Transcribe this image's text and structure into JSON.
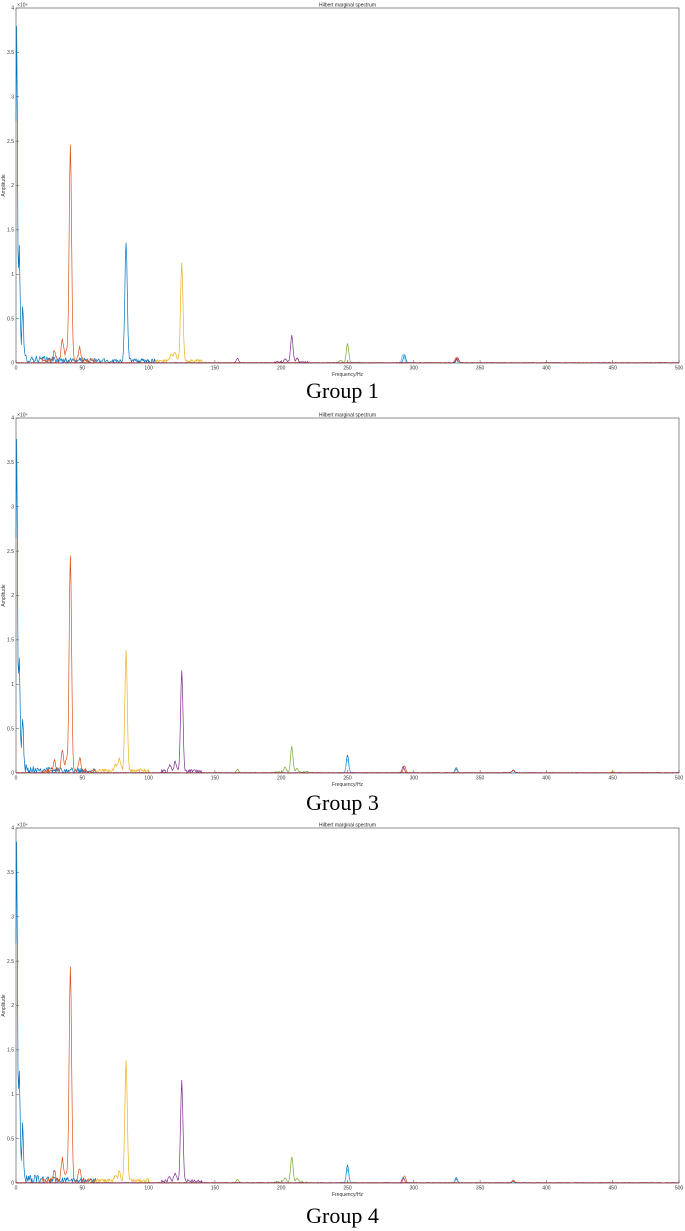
{
  "chart_data": [
    {
      "type": "line",
      "title": "Hilbert marginal spectrum",
      "xlabel": "Frequency/Hz",
      "ylabel": "Amplitude",
      "y_exponent_label": "×10⁴",
      "caption": "Group 1",
      "xlim": [
        0,
        500
      ],
      "ylim": [
        0,
        4
      ],
      "x_ticks": [
        "0",
        "50",
        "100",
        "150",
        "200",
        "250",
        "300",
        "350",
        "400",
        "450",
        "500"
      ],
      "y_ticks": [
        "0",
        "0.5",
        "1",
        "1.5",
        "2",
        "2.5",
        "3",
        "3.5",
        "4"
      ],
      "series": [
        {
          "color": "#0072BD",
          "peaks": [
            [
              0.5,
              3.75
            ],
            [
              2.5,
              1.2
            ],
            [
              5,
              0.6
            ],
            [
              83,
              1.35
            ],
            [
              293,
              0.09
            ],
            [
              332,
              0.04
            ]
          ],
          "floor": [
            0,
            105,
            0.12
          ]
        },
        {
          "color": "#D95319",
          "peaks": [
            [
              41,
              2.43
            ],
            [
              35,
              0.25
            ],
            [
              29,
              0.12
            ],
            [
              48,
              0.15
            ],
            [
              38,
              0.1
            ],
            [
              332,
              0.06
            ]
          ],
          "floor": [
            20,
            60,
            0.05
          ]
        },
        {
          "color": "#EDB120",
          "peaks": [
            [
              125,
              1.12
            ],
            [
              120,
              0.12
            ],
            [
              117,
              0.08
            ],
            [
              212,
              0.05
            ]
          ],
          "floor": [
            105,
            140,
            0.04
          ]
        },
        {
          "color": "#7E2F8E",
          "peaks": [
            [
              208,
              0.3
            ],
            [
              167,
              0.05
            ],
            [
              203,
              0.04
            ],
            [
              212,
              0.04
            ]
          ],
          "floor": [
            195,
            220,
            0.02
          ]
        },
        {
          "color": "#77AC30",
          "peaks": [
            [
              250,
              0.21
            ],
            [
              245,
              0.03
            ]
          ],
          "floor": [
            240,
            260,
            0.01
          ]
        },
        {
          "color": "#4DBEEE",
          "peaks": [
            [
              292,
              0.1
            ]
          ],
          "floor": [
            285,
            300,
            0.01
          ]
        },
        {
          "color": "#A2142F",
          "peaks": [
            [
              333,
              0.06
            ]
          ],
          "floor": [
            328,
            338,
            0.005
          ]
        }
      ]
    },
    {
      "type": "line",
      "title": "Hilbert marginal spectrum",
      "xlabel": "Frequency/Hz",
      "ylabel": "Amplitude",
      "y_exponent_label": "×10⁴",
      "caption": "Group 3",
      "xlim": [
        0,
        500
      ],
      "ylim": [
        0,
        4
      ],
      "x_ticks": [
        "0",
        "50",
        "100",
        "150",
        "200",
        "250",
        "300",
        "350",
        "400",
        "450",
        "500"
      ],
      "y_ticks": [
        "0",
        "0.5",
        "1",
        "1.5",
        "2",
        "2.5",
        "3",
        "3.5",
        "4"
      ],
      "series": [
        {
          "color": "#0072BD",
          "peaks": [
            [
              0.5,
              3.75
            ],
            [
              2.5,
              1.2
            ],
            [
              5,
              0.6
            ],
            [
              250,
              0.2
            ],
            [
              332,
              0.06
            ]
          ],
          "floor": [
            0,
            60,
            0.12
          ]
        },
        {
          "color": "#D95319",
          "peaks": [
            [
              41,
              2.43
            ],
            [
              35,
              0.25
            ],
            [
              29,
              0.12
            ],
            [
              48,
              0.15
            ],
            [
              38,
              0.1
            ],
            [
              293,
              0.08
            ],
            [
              375,
              0.03
            ]
          ],
          "floor": [
            20,
            60,
            0.05
          ]
        },
        {
          "color": "#EDB120",
          "peaks": [
            [
              83,
              1.35
            ],
            [
              78,
              0.12
            ],
            [
              75,
              0.08
            ],
            [
              450,
              0.02
            ]
          ],
          "floor": [
            60,
            100,
            0.05
          ]
        },
        {
          "color": "#7E2F8E",
          "peaks": [
            [
              125,
              1.12
            ],
            [
              120,
              0.1
            ],
            [
              116,
              0.06
            ],
            [
              292,
              0.07
            ],
            [
              332,
              0.04
            ]
          ],
          "floor": [
            110,
            140,
            0.04
          ]
        },
        {
          "color": "#77AC30",
          "peaks": [
            [
              208,
              0.29
            ],
            [
              203,
              0.05
            ],
            [
              167,
              0.04
            ],
            [
              212,
              0.04
            ]
          ],
          "floor": [
            195,
            220,
            0.02
          ]
        },
        {
          "color": "#4DBEEE",
          "peaks": [
            [
              250,
              0.15
            ],
            [
              332,
              0.05
            ]
          ],
          "floor": [
            245,
            255,
            0.01
          ]
        },
        {
          "color": "#A2142F",
          "peaks": [
            [
              375,
              0.03
            ]
          ],
          "floor": [
            370,
            380,
            0.005
          ]
        }
      ]
    },
    {
      "type": "line",
      "title": "Hilbert marginal spectrum",
      "xlabel": "Frequency/Hz",
      "ylabel": "Amplitude",
      "y_exponent_label": "×10⁴",
      "caption": "Group 4",
      "xlim": [
        0,
        500
      ],
      "ylim": [
        0,
        4
      ],
      "x_ticks": [
        "0",
        "50",
        "100",
        "150",
        "200",
        "250",
        "300",
        "350",
        "400",
        "450",
        "500"
      ],
      "y_ticks": [
        "0",
        "0.5",
        "1",
        "1.5",
        "2",
        "2.5",
        "3",
        "3.5",
        "4"
      ],
      "series": [
        {
          "color": "#0072BD",
          "peaks": [
            [
              0.5,
              3.75
            ],
            [
              2.5,
              1.2
            ],
            [
              5,
              0.6
            ],
            [
              250,
              0.2
            ],
            [
              332,
              0.06
            ]
          ],
          "floor": [
            0,
            60,
            0.12
          ]
        },
        {
          "color": "#D95319",
          "peaks": [
            [
              41,
              2.43
            ],
            [
              35,
              0.25
            ],
            [
              29,
              0.12
            ],
            [
              48,
              0.15
            ],
            [
              38,
              0.1
            ],
            [
              293,
              0.08
            ],
            [
              375,
              0.03
            ]
          ],
          "floor": [
            20,
            60,
            0.05
          ]
        },
        {
          "color": "#EDB120",
          "peaks": [
            [
              83,
              1.35
            ],
            [
              78,
              0.12
            ],
            [
              75,
              0.08
            ],
            [
              375,
              0.02
            ]
          ],
          "floor": [
            60,
            100,
            0.05
          ]
        },
        {
          "color": "#7E2F8E",
          "peaks": [
            [
              125,
              1.12
            ],
            [
              120,
              0.1
            ],
            [
              116,
              0.06
            ],
            [
              292,
              0.06
            ],
            [
              332,
              0.04
            ]
          ],
          "floor": [
            110,
            140,
            0.04
          ]
        },
        {
          "color": "#77AC30",
          "peaks": [
            [
              208,
              0.29
            ],
            [
              203,
              0.05
            ],
            [
              167,
              0.04
            ],
            [
              212,
              0.04
            ]
          ],
          "floor": [
            195,
            220,
            0.02
          ]
        },
        {
          "color": "#4DBEEE",
          "peaks": [
            [
              250,
              0.15
            ],
            [
              332,
              0.05
            ]
          ],
          "floor": [
            245,
            255,
            0.01
          ]
        },
        {
          "color": "#A2142F",
          "peaks": [
            [
              375,
              0.02
            ]
          ],
          "floor": [
            370,
            380,
            0.005
          ]
        }
      ]
    }
  ]
}
